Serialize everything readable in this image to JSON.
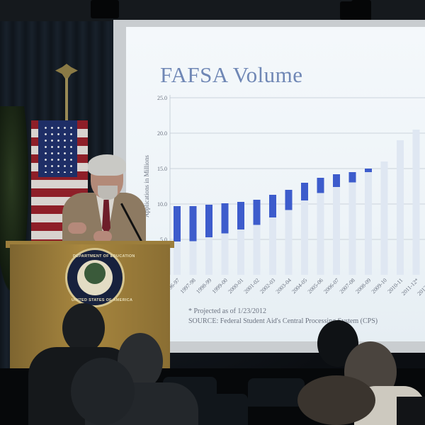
{
  "slide": {
    "title": "FAFSA Volume",
    "footnote": "* Projected as of 1/23/2012",
    "source": "SOURCE: Federal Student Aid's Central Processing System (CPS)"
  },
  "chart_data": {
    "type": "bar",
    "title": "FAFSA Volume",
    "xlabel": "",
    "ylabel": "Applications in Millions",
    "ylim": [
      0,
      25
    ],
    "yticks": [
      "5.0",
      "10.0",
      "15.0",
      "20.0",
      "25.0"
    ],
    "categories": [
      "1996-97",
      "1997-98",
      "1998-99",
      "1999-00",
      "2000-01",
      "2001-02",
      "2002-03",
      "2003-04",
      "2004-05",
      "2005-06",
      "2006-07",
      "2007-08",
      "2008-09",
      "2009-10",
      "2010-11",
      "2011-12*",
      "2012-13*"
    ],
    "series": [
      {
        "values": [
          9.7,
          9.7,
          9.9,
          10.1,
          10.3,
          10.6,
          11.3,
          12.0,
          13.0,
          13.7,
          14.2,
          14.5,
          15.0,
          16.0,
          19.0,
          20.5,
          21.1
        ]
      }
    ],
    "grid": true,
    "legend": "none",
    "colors": {
      "highlight": "#3d5ccc",
      "bar": "#dfe7f2",
      "grid": "#bfc8d2",
      "axis_text": "#6b7280"
    }
  },
  "podium": {
    "seal_top": "DEPARTMENT OF EDUCATION",
    "seal_bottom": "UNITED STATES OF AMERICA"
  }
}
